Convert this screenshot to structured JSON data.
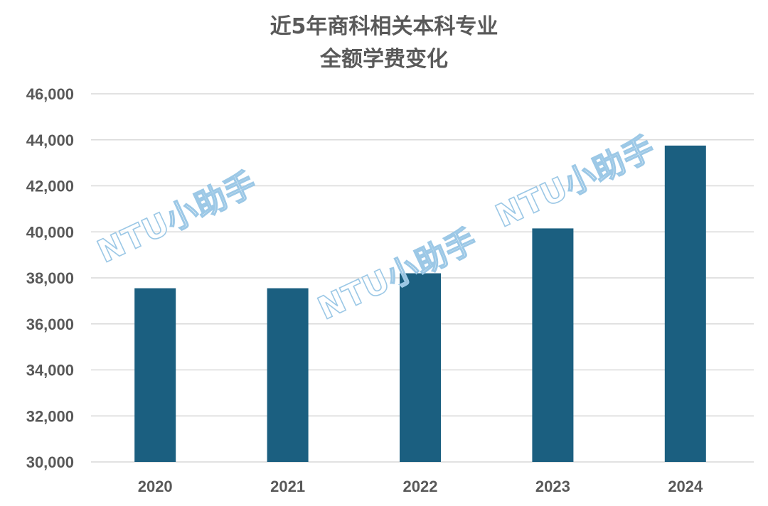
{
  "chart_data": {
    "type": "bar",
    "title_line1": "近5年商科相关本科专业",
    "title_line2": "全额学费变化",
    "categories": [
      "2020",
      "2021",
      "2022",
      "2023",
      "2024"
    ],
    "values": [
      37550,
      37550,
      38200,
      40150,
      43750
    ],
    "ylim": [
      30000,
      46000
    ],
    "yticks": [
      "30,000",
      "32,000",
      "34,000",
      "36,000",
      "38,000",
      "40,000",
      "42,000",
      "44,000",
      "46,000"
    ],
    "ytick_values": [
      30000,
      32000,
      34000,
      36000,
      38000,
      40000,
      42000,
      44000,
      46000
    ],
    "grid": true,
    "bar_color": "#1b5f80",
    "grid_color": "#d9d9d9",
    "text_color": "#595959"
  },
  "watermark": {
    "text": "NTU小助手",
    "color": "#9cc8e6"
  }
}
